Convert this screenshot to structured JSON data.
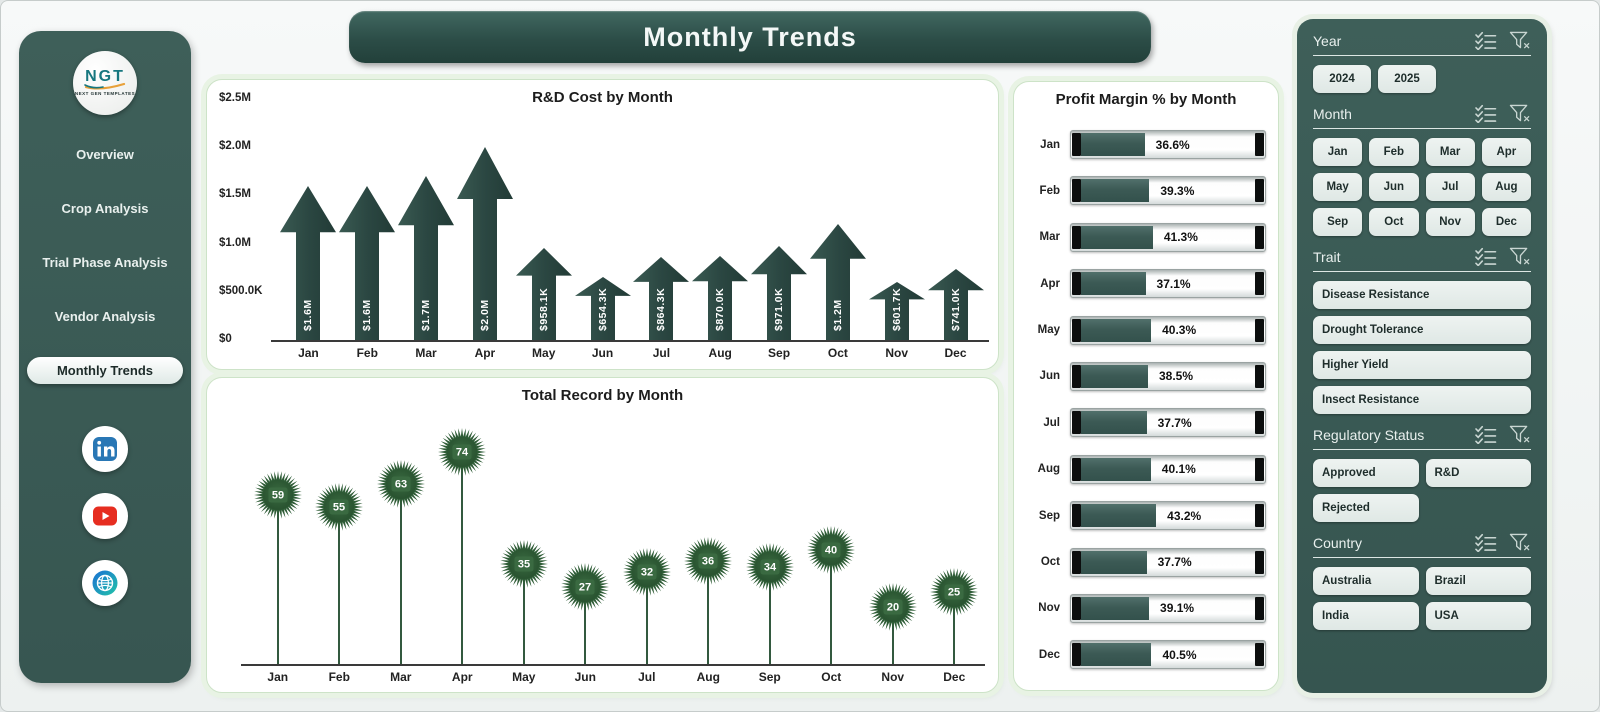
{
  "header": {
    "title": "Monthly Trends"
  },
  "sidebar": {
    "logo_text": "NGT",
    "logo_subtext": "NEXT GEN TEMPLATES",
    "items": [
      {
        "label": "Overview",
        "active": false
      },
      {
        "label": "Crop Analysis",
        "active": false
      },
      {
        "label": "Trial Phase Analysis",
        "active": false
      },
      {
        "label": "Vendor Analysis",
        "active": false
      },
      {
        "label": "Monthly Trends",
        "active": true
      }
    ],
    "social": [
      {
        "name": "linkedin"
      },
      {
        "name": "youtube"
      },
      {
        "name": "website"
      }
    ]
  },
  "chart_data": [
    {
      "type": "bar",
      "marker": "arrow",
      "title": "R&D Cost by Month",
      "categories": [
        "Jan",
        "Feb",
        "Mar",
        "Apr",
        "May",
        "Jun",
        "Jul",
        "Aug",
        "Sep",
        "Oct",
        "Nov",
        "Dec"
      ],
      "values": [
        1600000,
        1600000,
        1700000,
        2000000,
        958100,
        654300,
        864300,
        870000,
        971000,
        1200000,
        601700,
        741000
      ],
      "labels": [
        "$1.6M",
        "$1.6M",
        "$1.7M",
        "$2.0M",
        "$958.1K",
        "$654.3K",
        "$864.3K",
        "$870.0K",
        "$971.0K",
        "$1.2M",
        "$601.7K",
        "$741.0K"
      ],
      "y_ticks": [
        {
          "label": "$0",
          "value": 0
        },
        {
          "label": "$500.0K",
          "value": 500000
        },
        {
          "label": "$1.0M",
          "value": 1000000
        },
        {
          "label": "$1.5M",
          "value": 1500000
        },
        {
          "label": "$2.0M",
          "value": 2000000
        },
        {
          "label": "$2.5M",
          "value": 2500000
        }
      ],
      "ylim": [
        0,
        2500000
      ],
      "xlabel": "",
      "ylabel": "",
      "grid": false,
      "legend": "none"
    },
    {
      "type": "lollipop",
      "marker": "starburst",
      "title": "Total Record by Month",
      "categories": [
        "Jan",
        "Feb",
        "Mar",
        "Apr",
        "May",
        "Jun",
        "Jul",
        "Aug",
        "Sep",
        "Oct",
        "Nov",
        "Dec"
      ],
      "values": [
        59,
        55,
        63,
        74,
        35,
        27,
        32,
        36,
        34,
        40,
        20,
        25
      ],
      "ylim": [
        0,
        80
      ],
      "xlabel": "",
      "ylabel": "",
      "grid": false,
      "legend": "none"
    },
    {
      "type": "bar-horizontal",
      "title": "Profit Margin % by Month",
      "categories": [
        "Jan",
        "Feb",
        "Mar",
        "Apr",
        "May",
        "Jun",
        "Jul",
        "Aug",
        "Sep",
        "Oct",
        "Nov",
        "Dec"
      ],
      "values": [
        36.6,
        39.3,
        41.3,
        37.1,
        40.3,
        38.5,
        37.7,
        40.1,
        43.2,
        37.7,
        39.1,
        40.5
      ],
      "labels": [
        "36.6%",
        "39.3%",
        "41.3%",
        "37.1%",
        "40.3%",
        "38.5%",
        "37.7%",
        "40.1%",
        "43.2%",
        "37.7%",
        "39.1%",
        "40.5%"
      ],
      "xlim": [
        0,
        100
      ],
      "xlabel": "",
      "ylabel": "",
      "grid": false,
      "legend": "none"
    }
  ],
  "filters": {
    "sections": [
      {
        "title": "Year",
        "layout": "row",
        "options": [
          "2024",
          "2025"
        ]
      },
      {
        "title": "Month",
        "layout": "grid4",
        "options": [
          "Jan",
          "Feb",
          "Mar",
          "Apr",
          "May",
          "Jun",
          "Jul",
          "Aug",
          "Sep",
          "Oct",
          "Nov",
          "Dec"
        ]
      },
      {
        "title": "Trait",
        "layout": "list",
        "options": [
          "Disease Resistance",
          "Drought Tolerance",
          "Higher Yield",
          "Insect Resistance"
        ]
      },
      {
        "title": "Regulatory Status",
        "layout": "grid2",
        "options": [
          "Approved",
          "R&D",
          "Rejected"
        ]
      },
      {
        "title": "Country",
        "layout": "grid2",
        "options": [
          "Australia",
          "Brazil",
          "India",
          "USA"
        ]
      }
    ]
  },
  "colors": {
    "arrow_teal": "#2b4742",
    "panel_teal": "#3b5b55",
    "flower_green": "#2e5c36",
    "slicer_button": "#e6edea",
    "panel_border_green": "#d5e8d0",
    "linkedin_blue": "#2977b5",
    "youtube_red": "#e62d20",
    "bar_fill_teal": "#3c5a55"
  }
}
